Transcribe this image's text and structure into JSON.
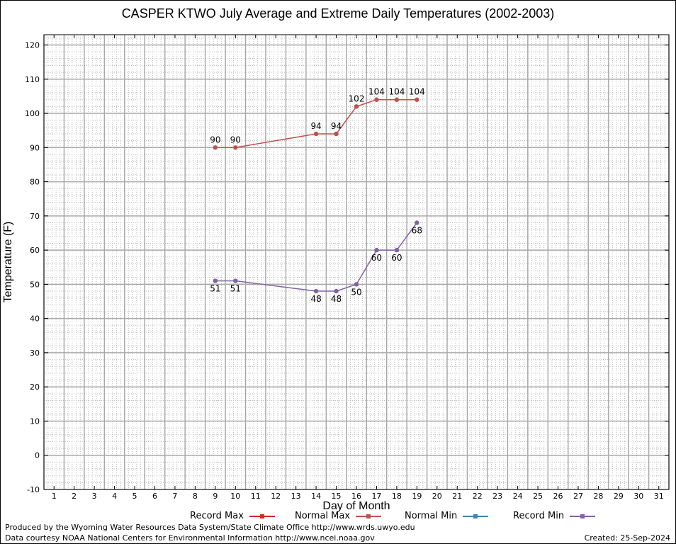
{
  "chart_data": {
    "type": "line",
    "title": "CASPER KTWO July Average and Extreme Daily Temperatures (2002-2003)",
    "xlabel": "Day of Month",
    "ylabel": "Temperature (F)",
    "xlim": [
      0.5,
      31.5
    ],
    "ylim": [
      -10,
      123
    ],
    "x_ticks": [
      "1",
      "2",
      "3",
      "4",
      "5",
      "6",
      "7",
      "8",
      "9",
      "10",
      "11",
      "12",
      "13",
      "14",
      "15",
      "16",
      "17",
      "18",
      "19",
      "20",
      "21",
      "22",
      "23",
      "24",
      "25",
      "26",
      "27",
      "28",
      "29",
      "30",
      "31"
    ],
    "y_ticks": [
      "120",
      "110",
      "100",
      "90",
      "80",
      "70",
      "60",
      "50",
      "40",
      "30",
      "20",
      "10",
      "0",
      "-10"
    ],
    "grid": true,
    "legend_position": "bottom",
    "series": [
      {
        "name": "Record Max",
        "color": "#d62728",
        "points": []
      },
      {
        "name": "Normal Max",
        "color": "#c0504d",
        "points": [
          {
            "x": 9,
            "y": 90,
            "label": "90"
          },
          {
            "x": 10,
            "y": 90,
            "label": "90"
          },
          {
            "x": 14,
            "y": 94,
            "label": "94"
          },
          {
            "x": 15,
            "y": 94,
            "label": "94"
          },
          {
            "x": 16,
            "y": 102,
            "label": "102"
          },
          {
            "x": 17,
            "y": 104,
            "label": "104"
          },
          {
            "x": 18,
            "y": 104,
            "label": "104"
          },
          {
            "x": 19,
            "y": 104,
            "label": "104"
          }
        ]
      },
      {
        "name": "Normal Min",
        "color": "#4682b4",
        "points": []
      },
      {
        "name": "Record Min",
        "color": "#8064a2",
        "points": [
          {
            "x": 9,
            "y": 51,
            "label": "51"
          },
          {
            "x": 10,
            "y": 51,
            "label": "51"
          },
          {
            "x": 14,
            "y": 48,
            "label": "48"
          },
          {
            "x": 15,
            "y": 48,
            "label": "48"
          },
          {
            "x": 16,
            "y": 50,
            "label": "50"
          },
          {
            "x": 17,
            "y": 60,
            "label": "60"
          },
          {
            "x": 18,
            "y": 60,
            "label": "60"
          },
          {
            "x": 19,
            "y": 68,
            "label": "68"
          }
        ]
      }
    ]
  },
  "footer": {
    "produced_by": "Produced by the Wyoming Water Resources Data System/State Climate Office http://www.wrds.uwyo.edu",
    "courtesy": "Data courtesy NOAA National Centers for Environmental Information http://www.ncei.noaa.gov",
    "created": "Created: 25-Sep-2024"
  }
}
